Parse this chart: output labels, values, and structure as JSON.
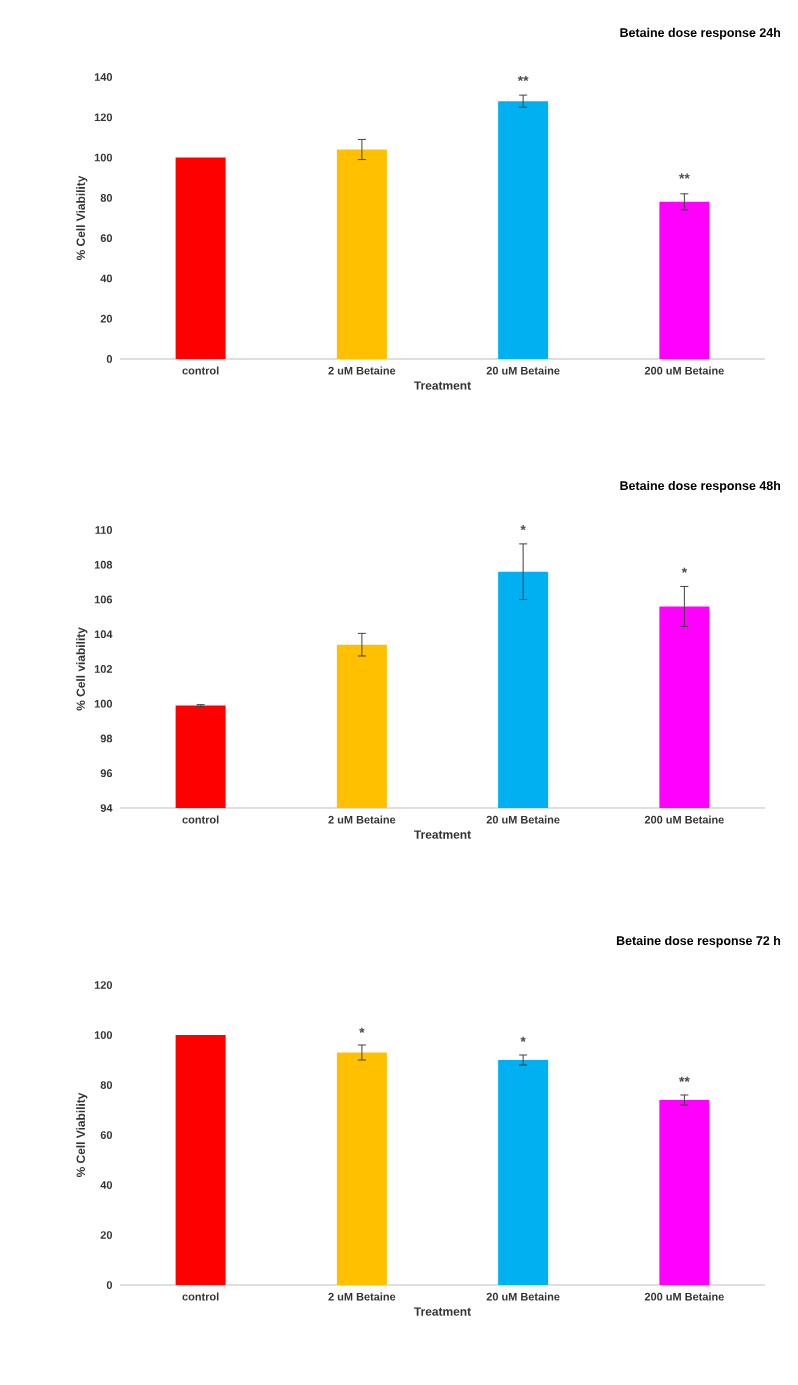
{
  "chart_data": [
    {
      "type": "bar",
      "title": "Betaine dose response 24h",
      "xlabel": "Treatment",
      "ylabel": "% Cell Viability",
      "categories": [
        "control",
        "2 uM Betaine",
        "20 uM Betaine",
        "200 uM Betaine"
      ],
      "values": [
        100,
        104,
        128,
        78
      ],
      "errors": [
        null,
        5,
        3,
        4
      ],
      "colors": [
        "#ff0000",
        "#ffc000",
        "#00b0f0",
        "#ff00ff"
      ],
      "ylim": [
        0,
        140
      ],
      "yticks": [
        0,
        20,
        40,
        60,
        80,
        100,
        120,
        140
      ],
      "grid": false,
      "annotations": [
        {
          "text": "**",
          "x": "20 uM Betaine",
          "y": 131.2
        },
        {
          "text": "**",
          "x": "200 uM Betaine",
          "y": 82.7
        }
      ]
    },
    {
      "type": "bar",
      "title": "Betaine dose response 48h",
      "xlabel": "Treatment",
      "ylabel": "% Cell viability",
      "categories": [
        "control",
        "2 uM Betaine",
        "20 uM Betaine",
        "200 uM Betaine"
      ],
      "values": [
        99.9,
        103.4,
        107.6,
        105.6
      ],
      "errors": [
        0.05,
        0.65,
        1.6,
        1.15
      ],
      "colors": [
        "#ff0000",
        "#ffc000",
        "#00b0f0",
        "#ff00ff"
      ],
      "ylim": [
        94,
        110
      ],
      "yticks": [
        94,
        96,
        98,
        100,
        102,
        104,
        106,
        108,
        110
      ],
      "grid": false,
      "annotations": [
        {
          "text": "*",
          "x": "20 uM Betaine",
          "y": 109.2
        },
        {
          "text": "*",
          "x": "200 uM Betaine",
          "y": 106.75
        }
      ]
    },
    {
      "type": "bar",
      "title": "Betaine dose response 72 h",
      "xlabel": "Treatment",
      "ylabel": "% Cell Viability",
      "categories": [
        "control",
        "2 uM Betaine",
        "20 uM Betaine",
        "200 uM Betaine"
      ],
      "values": [
        100,
        93,
        90,
        74
      ],
      "errors": [
        null,
        3,
        2,
        2
      ],
      "colors": [
        "#ff0000",
        "#ffc000",
        "#00b0f0",
        "#ff00ff"
      ],
      "ylim": [
        0,
        120
      ],
      "yticks": [
        0,
        20,
        40,
        60,
        80,
        100,
        120
      ],
      "grid": false,
      "annotations": [
        {
          "text": "*",
          "x": "2 uM Betaine",
          "y": 95.4
        },
        {
          "text": "*",
          "x": "20 uM Betaine",
          "y": 91.8
        },
        {
          "text": "**",
          "x": "200 uM Betaine",
          "y": 75.8
        }
      ]
    }
  ]
}
